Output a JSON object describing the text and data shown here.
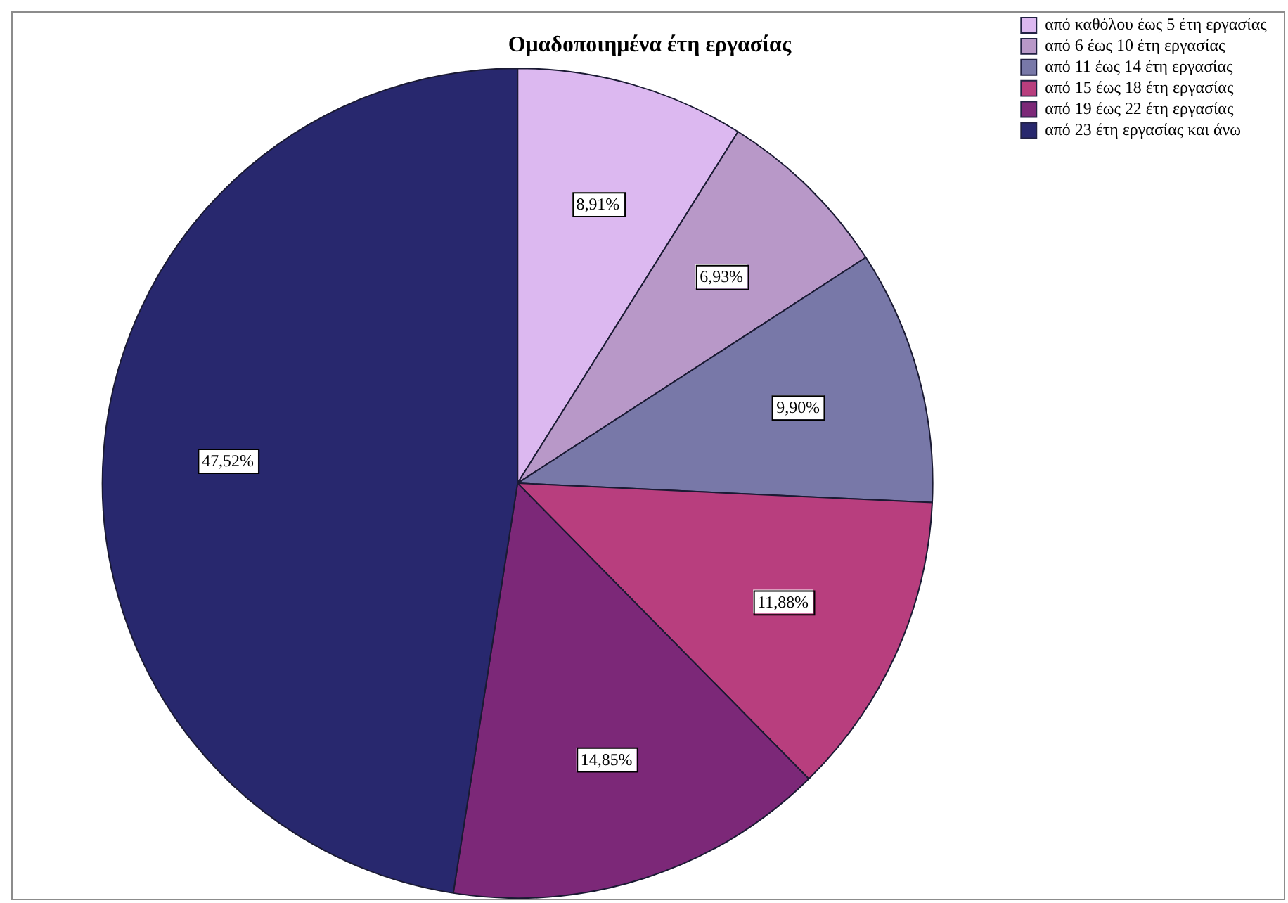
{
  "chart_data": {
    "type": "pie",
    "title": "Ομαδοποιημένα έτη εργασίας",
    "categories": [
      "από καθόλου έως 5 έτη εργασίας",
      "από 6 έως 10 έτη εργασίας",
      "από 11 έως 14 έτη εργασίας",
      "από 15 έως 18 έτη εργασίας",
      "από 19 έως 22 έτη εργασίας",
      "από 23 έτη εργασίας και άνω"
    ],
    "values": [
      8.91,
      6.93,
      9.9,
      11.88,
      14.85,
      47.52
    ],
    "colors": [
      "#dcb8f0",
      "#b898c8",
      "#7878a8",
      "#b83e7e",
      "#7c2878",
      "#28286e"
    ],
    "value_labels": [
      "8,91%",
      "6,93%",
      "9,90%",
      "11,88%",
      "14,85%",
      "47,52%"
    ],
    "legend": "top right"
  }
}
